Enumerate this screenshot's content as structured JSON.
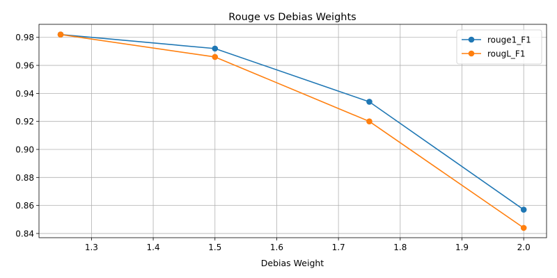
{
  "chart_data": {
    "type": "line",
    "title": "Rouge vs Debias Weights",
    "xlabel": "Debias Weight",
    "ylabel": "",
    "xlim": [
      1.215,
      2.037
    ],
    "ylim": [
      0.837,
      0.9893
    ],
    "xticks": [
      1.3,
      1.4,
      1.5,
      1.6,
      1.7,
      1.8,
      1.9,
      2.0
    ],
    "xtick_labels": [
      "1.3",
      "1.4",
      "1.5",
      "1.6",
      "1.7",
      "1.8",
      "1.9",
      "2.0"
    ],
    "yticks": [
      0.84,
      0.86,
      0.88,
      0.9,
      0.92,
      0.94,
      0.96,
      0.98
    ],
    "ytick_labels": [
      "0.84",
      "0.86",
      "0.88",
      "0.90",
      "0.92",
      "0.94",
      "0.96",
      "0.98"
    ],
    "grid": true,
    "legend_position": "top-right",
    "x": [
      1.25,
      1.5,
      1.75,
      2.0
    ],
    "series": [
      {
        "name": "rouge1_F1",
        "color": "#1f77b4",
        "values": [
          0.982,
          0.972,
          0.934,
          0.857
        ]
      },
      {
        "name": "rougL_F1",
        "color": "#ff7f0e",
        "values": [
          0.982,
          0.966,
          0.92,
          0.844
        ]
      }
    ]
  }
}
